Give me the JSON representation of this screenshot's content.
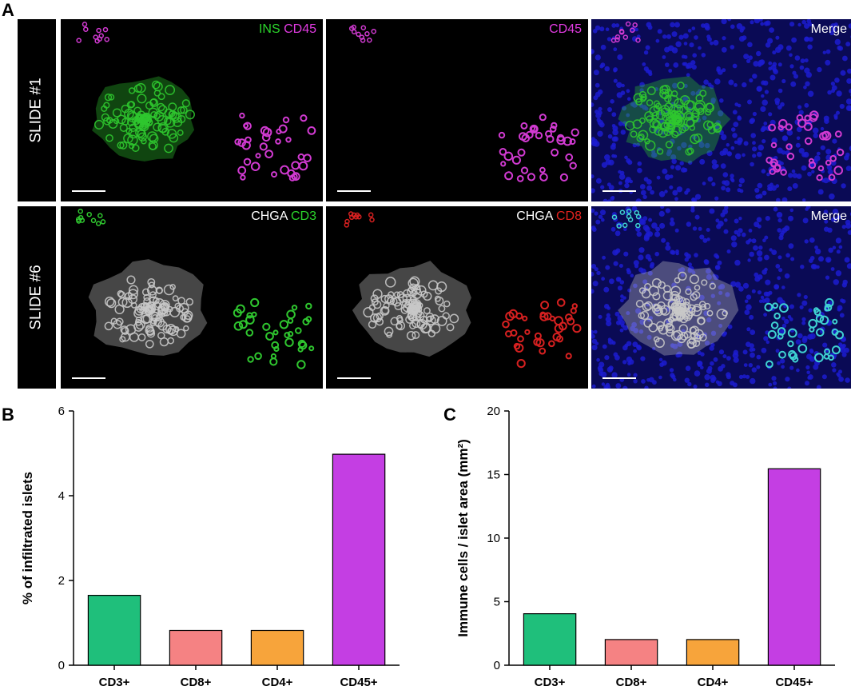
{
  "panel_a": {
    "letter": "A",
    "rows": [
      {
        "slide_label": "SLIDE #1",
        "images": [
          {
            "caption_parts": [
              {
                "text": "INS",
                "color": "#2bd42b"
              },
              {
                "text": " ",
                "color": "#ffffff"
              },
              {
                "text": "CD45",
                "color": "#e23be2"
              }
            ],
            "islet_color": "#2fc62f",
            "cell_color": "#d13ad1",
            "background": "#000000",
            "nuclei": false,
            "islet": true
          },
          {
            "caption_parts": [
              {
                "text": "CD45",
                "color": "#e23be2"
              }
            ],
            "islet_color": "#000000",
            "cell_color": "#d13ad1",
            "background": "#000000",
            "nuclei": false,
            "islet": false
          },
          {
            "caption_parts": [
              {
                "text": "Merge",
                "color": "#ffffff"
              }
            ],
            "islet_color": "#2fc62f",
            "cell_color": "#d13ad1",
            "background": "#0a0a55",
            "nuclei": true,
            "islet": true
          }
        ]
      },
      {
        "slide_label": "SLIDE #6",
        "images": [
          {
            "caption_parts": [
              {
                "text": "CHGA",
                "color": "#ffffff"
              },
              {
                "text": " ",
                "color": "#ffffff"
              },
              {
                "text": "CD3",
                "color": "#2bd42b"
              }
            ],
            "islet_color": "#c8c8c8",
            "cell_color": "#2fc62f",
            "background": "#000000",
            "nuclei": false,
            "islet": true
          },
          {
            "caption_parts": [
              {
                "text": "CHGA",
                "color": "#ffffff"
              },
              {
                "text": " ",
                "color": "#ffffff"
              },
              {
                "text": "CD8",
                "color": "#e3221f"
              }
            ],
            "islet_color": "#c8c8c8",
            "cell_color": "#d62020",
            "background": "#000000",
            "nuclei": false,
            "islet": true
          },
          {
            "caption_parts": [
              {
                "text": "Merge",
                "color": "#ffffff"
              }
            ],
            "islet_color": "#c8c8c8",
            "cell_color": "#3fd2d2",
            "background": "#0a0a55",
            "nuclei": true,
            "islet": true
          }
        ]
      }
    ]
  },
  "chart_data": [
    {
      "panel_letter": "B",
      "type": "bar",
      "categories": [
        "CD3+",
        "CD8+",
        "CD4+",
        "CD45+"
      ],
      "values": [
        1.65,
        0.82,
        0.82,
        4.98
      ],
      "colors": [
        "#1fbf7b",
        "#f58283",
        "#f7a43b",
        "#c43ee3"
      ],
      "ylabel": "% of infiltrated islets",
      "xlabel": "",
      "ylim": [
        0,
        6
      ],
      "yticks": [
        "0",
        "2",
        "4",
        "6"
      ],
      "ytick_values": [
        0,
        2,
        4,
        6
      ],
      "grid": false
    },
    {
      "panel_letter": "C",
      "type": "bar",
      "categories": [
        "CD3+",
        "CD8+",
        "CD4+",
        "CD45+"
      ],
      "values": [
        4.05,
        2.02,
        2.02,
        15.45
      ],
      "colors": [
        "#1fbf7b",
        "#f58283",
        "#f7a43b",
        "#c43ee3"
      ],
      "ylabel": "Immune cells / islet area (mm²)",
      "xlabel": "",
      "ylim": [
        0,
        20
      ],
      "yticks": [
        "0",
        "5",
        "10",
        "15",
        "20"
      ],
      "ytick_values": [
        0,
        5,
        10,
        15,
        20
      ],
      "grid": false
    }
  ]
}
